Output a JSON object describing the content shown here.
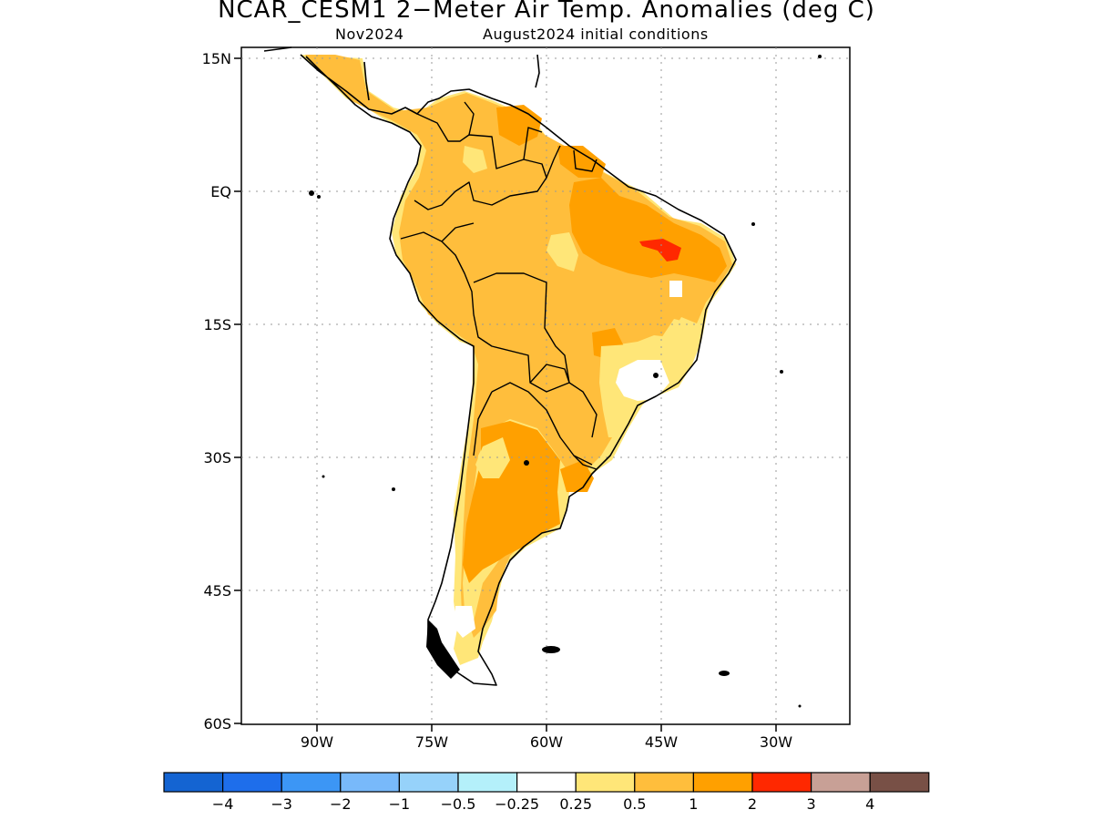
{
  "title": "NCAR_CESM1 2−Meter Air Temp. Anomalies (deg C)",
  "subtitle_left": "Nov2024",
  "subtitle_right": "August2024 initial conditions",
  "lat_labels": [
    "15N",
    "EQ",
    "15S",
    "30S",
    "45S",
    "60S"
  ],
  "lon_labels": [
    "90W",
    "75W",
    "60W",
    "45W",
    "30W"
  ],
  "colorbar": {
    "colors": [
      "#1464d2",
      "#1e6eeb",
      "#3c96f5",
      "#78b9fa",
      "#96d2fa",
      "#b4f0fa",
      "#ffffff",
      "#ffe678",
      "#ffbe3c",
      "#ffa000",
      "#ff2800",
      "#c8a096",
      "#785046"
    ],
    "labels": [
      "−4",
      "−3",
      "−2",
      "−1",
      "−0.5",
      "−0.25",
      "0.25",
      "0.5",
      "1",
      "2",
      "3",
      "4"
    ]
  }
}
